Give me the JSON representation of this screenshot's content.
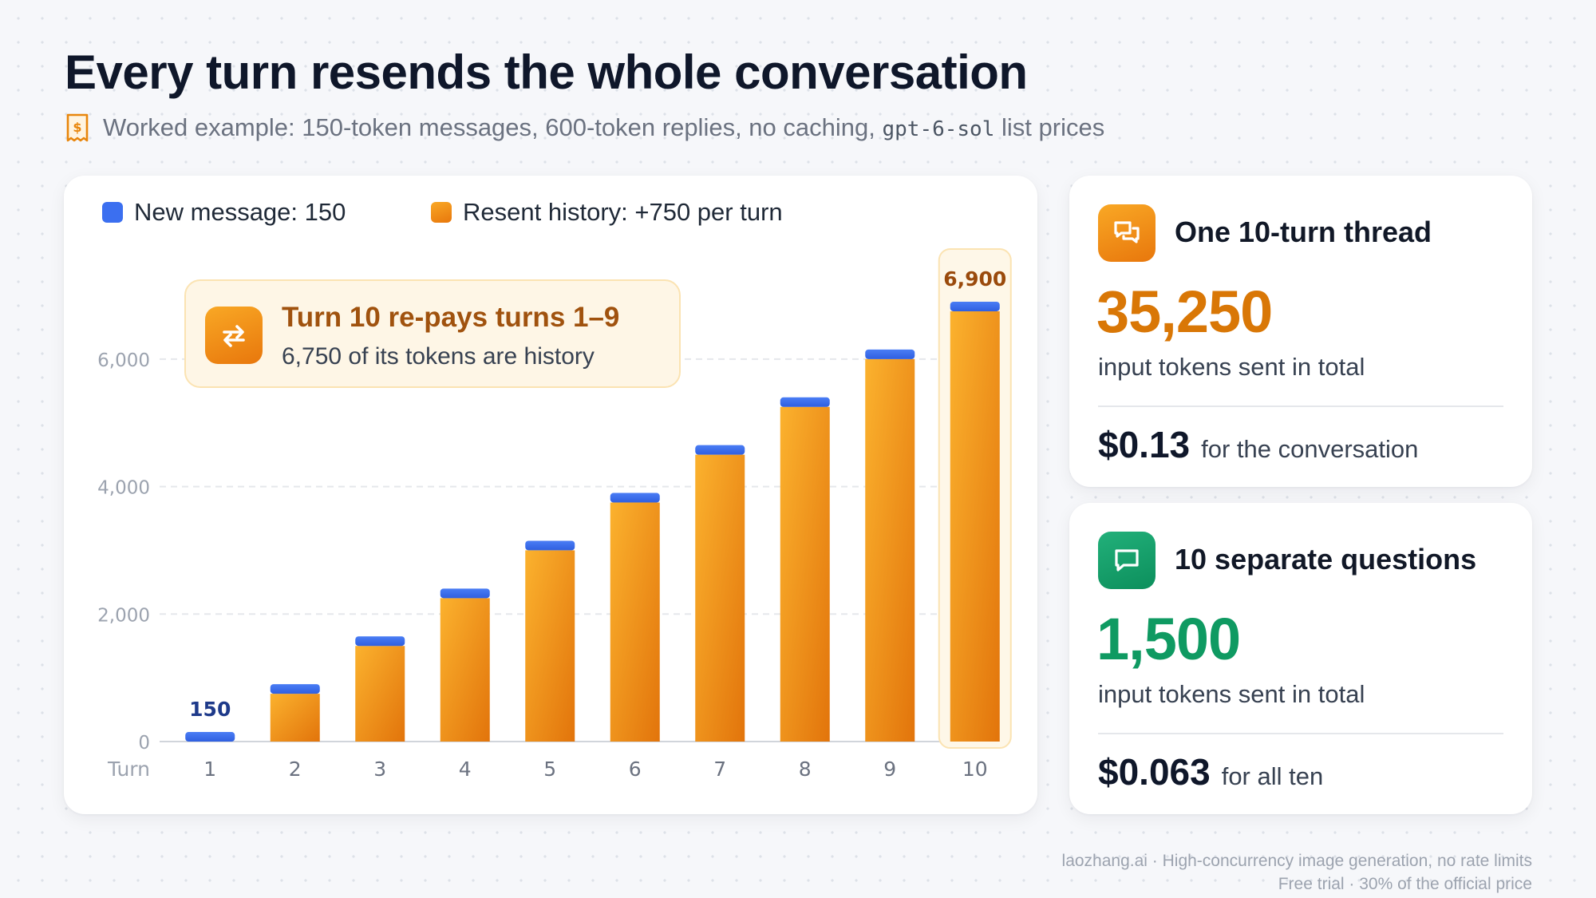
{
  "header": {
    "title": "Every turn resends the whole conversation",
    "subtitle_prefix": "Worked example: 150-token messages, 600-token replies, no caching,",
    "subtitle_code": "gpt-6-sol",
    "subtitle_suffix": "list prices",
    "subtitle_icon": "receipt-icon"
  },
  "legend": {
    "new_message": "New message: 150",
    "resent_history": "Resent history: +750 per turn"
  },
  "callout": {
    "icon": "repeat-icon",
    "title": "Turn 10 re-pays turns 1–9",
    "text": "6,750 of its tokens are history"
  },
  "chart_data": {
    "type": "bar",
    "stacked": true,
    "x_axis_title": "Turn",
    "categories": [
      "1",
      "2",
      "3",
      "4",
      "5",
      "6",
      "7",
      "8",
      "9",
      "10"
    ],
    "series": [
      {
        "name": "Resent history",
        "color": "#f59e0b",
        "values": [
          0,
          750,
          1500,
          2250,
          3000,
          3750,
          4500,
          5250,
          6000,
          6750
        ]
      },
      {
        "name": "New message",
        "color": "#3b6ff0",
        "values": [
          150,
          150,
          150,
          150,
          150,
          150,
          150,
          150,
          150,
          150
        ]
      }
    ],
    "yticks": [
      0,
      2000,
      4000,
      6000
    ],
    "ytick_labels": [
      "0",
      "2,000",
      "4,000",
      "6,000"
    ],
    "ylim": [
      0,
      7000
    ],
    "grid": true,
    "data_labels": [
      {
        "category": "1",
        "label": "150"
      },
      {
        "category": "10",
        "label": "6,900",
        "highlighted": true
      }
    ]
  },
  "cards": [
    {
      "icon": "chat-bubbles-icon",
      "title": "One 10-turn thread",
      "total": "35,250",
      "total_label": "input tokens sent in total",
      "cost": "$0.13",
      "cost_label": "for the conversation",
      "accent": "#d97706"
    },
    {
      "icon": "chat-bubble-icon",
      "title": "10 separate questions",
      "total": "1,500",
      "total_label": "input tokens sent in total",
      "cost": "$0.063",
      "cost_label": "for all ten",
      "accent": "#0f9a62"
    }
  ],
  "footer": {
    "line1": "laozhang.ai · High-concurrency image generation, no rate limits",
    "line2": "Free trial · 30% of the official price"
  }
}
